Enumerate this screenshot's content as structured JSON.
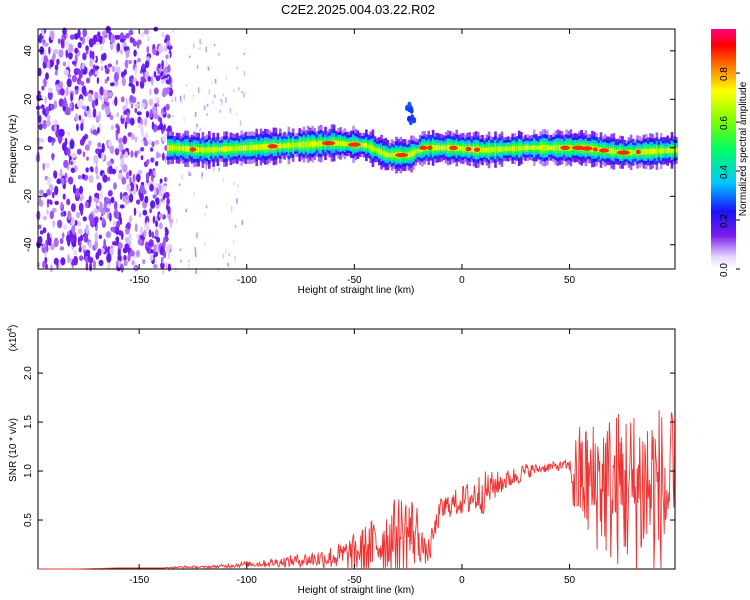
{
  "title": "C2E2.2025.004.03.22.R02",
  "chart_data": [
    {
      "type": "heatmap",
      "xlabel": "Height of straight line (km)",
      "ylabel": "Frequency (Hz)",
      "xlim": [
        -197,
        99
      ],
      "ylim": [
        -50,
        49
      ],
      "xticks": [
        -150,
        -100,
        -50,
        0,
        50
      ],
      "yticks": [
        -40,
        -20,
        0,
        20,
        40
      ],
      "colorbar": {
        "label": "Normalized spectral amplitude",
        "range": [
          0.0,
          0.98
        ],
        "ticks": [
          "0.0",
          "0.2",
          "0.4",
          "0.6",
          "0.8"
        ]
      },
      "features": [
        {
          "name": "broadband noise region",
          "x_range": [
            -197,
            -135
          ],
          "freq_range": [
            -50,
            49
          ],
          "amplitude": 0.15
        },
        {
          "name": "main band",
          "x_range": [
            -137,
            99
          ],
          "center_freq": 0,
          "half_width_hz": 4,
          "amplitude_peak": 0.95
        },
        {
          "name": "secondary echo",
          "x": -24,
          "freq_range": [
            10,
            18
          ],
          "amplitude": 0.2
        }
      ],
      "band_center_freq": [
        {
          "x": -135,
          "freq": 0
        },
        {
          "x": -120,
          "freq": -1
        },
        {
          "x": -100,
          "freq": 0
        },
        {
          "x": -80,
          "freq": 1
        },
        {
          "x": -60,
          "freq": 2
        },
        {
          "x": -45,
          "freq": 1
        },
        {
          "x": -35,
          "freq": -3
        },
        {
          "x": -25,
          "freq": -3
        },
        {
          "x": -18,
          "freq": 0
        },
        {
          "x": -5,
          "freq": 0
        },
        {
          "x": 10,
          "freq": -1
        },
        {
          "x": 30,
          "freq": 0
        },
        {
          "x": 55,
          "freq": 0
        },
        {
          "x": 75,
          "freq": -2
        },
        {
          "x": 99,
          "freq": -1
        }
      ]
    },
    {
      "type": "line",
      "xlabel": "Height of straight line (km)",
      "ylabel": "SNR (10 * v/v)",
      "y_multiplier": "(x10",
      "y_multiplier_exp": "4",
      "xlim": [
        -197,
        99
      ],
      "ylim": [
        0,
        2.45
      ],
      "xticks": [
        -150,
        -100,
        -50,
        0,
        50
      ],
      "yticks": [
        "0.5",
        "1.0",
        "1.5",
        "2.0"
      ],
      "color": "#ee3333",
      "series": [
        {
          "x": [
            -197,
            -180,
            -160,
            -140,
            -130,
            -120,
            -110,
            -100,
            -95,
            -90,
            -85,
            -80,
            -75,
            -70,
            -65,
            -60,
            -55,
            -50,
            -45,
            -40,
            -35,
            -30,
            -25,
            -20,
            -17,
            -15,
            -12,
            -10,
            -8,
            -5,
            -2,
            0,
            3,
            6,
            10,
            15,
            20,
            25,
            30,
            35,
            40,
            45,
            48,
            50,
            52,
            55,
            60,
            65,
            70,
            75,
            80,
            85,
            90,
            95,
            99
          ],
          "y": [
            0.0,
            0.0,
            0.01,
            0.01,
            0.02,
            0.02,
            0.03,
            0.05,
            0.05,
            0.06,
            0.07,
            0.08,
            0.09,
            0.1,
            0.11,
            0.12,
            0.14,
            0.16,
            0.2,
            0.25,
            0.3,
            0.35,
            0.38,
            0.35,
            0.15,
            0.2,
            0.45,
            0.6,
            0.62,
            0.66,
            0.68,
            0.7,
            0.72,
            0.75,
            0.78,
            0.85,
            0.9,
            0.95,
            1.0,
            1.02,
            1.04,
            1.05,
            1.06,
            1.05,
            0.9,
            0.95,
            0.85,
            0.9,
            0.8,
            0.85,
            0.8,
            0.85,
            0.8,
            0.75,
            0.8
          ],
          "noise_amplitude": [
            0.0,
            0.0,
            0.0,
            0.0,
            0.01,
            0.01,
            0.02,
            0.03,
            0.03,
            0.04,
            0.05,
            0.06,
            0.07,
            0.08,
            0.1,
            0.12,
            0.15,
            0.2,
            0.25,
            0.3,
            0.35,
            0.4,
            0.45,
            0.3,
            0.1,
            0.15,
            0.12,
            0.12,
            0.15,
            0.12,
            0.15,
            0.15,
            0.18,
            0.2,
            0.22,
            0.15,
            0.1,
            0.1,
            0.08,
            0.05,
            0.05,
            0.05,
            0.05,
            0.05,
            0.45,
            0.55,
            0.65,
            0.75,
            0.8,
            0.85,
            0.85,
            0.9,
            0.95,
            0.85,
            0.8
          ]
        }
      ]
    }
  ]
}
